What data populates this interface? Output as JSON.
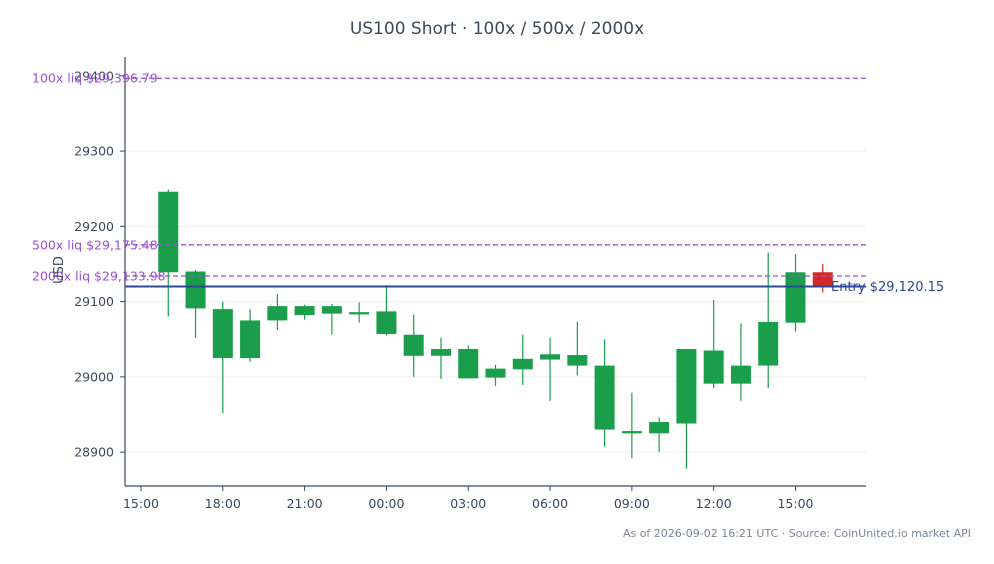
{
  "chart_data": {
    "type": "candlestick",
    "title": "US100 Short · 100x / 500x / 2000x",
    "ylabel": "USD",
    "xlabel": "",
    "ylim": [
      28855,
      29425
    ],
    "yticks": [
      28900,
      29000,
      29100,
      29200,
      29300,
      29400
    ],
    "xticks": [
      "15:00",
      "18:00",
      "21:00",
      "00:00",
      "03:00",
      "06:00",
      "09:00",
      "12:00",
      "15:00"
    ],
    "x_hours": [
      "15:00",
      "16:00",
      "17:00",
      "18:00",
      "19:00",
      "20:00",
      "21:00",
      "22:00",
      "23:00",
      "00:00",
      "01:00",
      "02:00",
      "03:00",
      "04:00",
      "05:00",
      "06:00",
      "07:00",
      "08:00",
      "09:00",
      "10:00",
      "11:00",
      "12:00",
      "13:00",
      "14:00",
      "15:00",
      "16:00"
    ],
    "candles": [
      {
        "t": "16:00",
        "open": 29139,
        "high": 29249,
        "low": 29080,
        "close": 29246
      },
      {
        "t": "17:00",
        "open": 29091,
        "high": 29142,
        "low": 29052,
        "close": 29140
      },
      {
        "t": "18:00",
        "open": 29025,
        "high": 29100,
        "low": 28952,
        "close": 29090
      },
      {
        "t": "19:00",
        "open": 29025,
        "high": 29090,
        "low": 29020,
        "close": 29075
      },
      {
        "t": "20:00",
        "open": 29075,
        "high": 29110,
        "low": 29062,
        "close": 29094
      },
      {
        "t": "21:00",
        "open": 29082,
        "high": 29096,
        "low": 29076,
        "close": 29094
      },
      {
        "t": "22:00",
        "open": 29084,
        "high": 29097,
        "low": 29056,
        "close": 29094
      },
      {
        "t": "23:00",
        "open": 29083,
        "high": 29099,
        "low": 29072,
        "close": 29086
      },
      {
        "t": "00:00",
        "open": 29057,
        "high": 29122,
        "low": 29055,
        "close": 29087
      },
      {
        "t": "01:00",
        "open": 29028,
        "high": 29083,
        "low": 29000,
        "close": 29056
      },
      {
        "t": "02:00",
        "open": 29028,
        "high": 29052,
        "low": 28997,
        "close": 29037
      },
      {
        "t": "03:00",
        "open": 28998,
        "high": 29042,
        "low": 28998,
        "close": 29037
      },
      {
        "t": "04:00",
        "open": 28999,
        "high": 29016,
        "low": 28988,
        "close": 29011
      },
      {
        "t": "05:00",
        "open": 29010,
        "high": 29056,
        "low": 28989,
        "close": 29024
      },
      {
        "t": "06:00",
        "open": 29023,
        "high": 29052,
        "low": 28968,
        "close": 29030
      },
      {
        "t": "07:00",
        "open": 29015,
        "high": 29073,
        "low": 29002,
        "close": 29029
      },
      {
        "t": "08:00",
        "open": 28930,
        "high": 29050,
        "low": 28907,
        "close": 29015
      },
      {
        "t": "09:00",
        "open": 28925,
        "high": 28979,
        "low": 28892,
        "close": 28928
      },
      {
        "t": "10:00",
        "open": 28925,
        "high": 28946,
        "low": 28900,
        "close": 28940
      },
      {
        "t": "11:00",
        "open": 28938,
        "high": 29037,
        "low": 28878,
        "close": 29037
      },
      {
        "t": "12:00",
        "open": 28991,
        "high": 29102,
        "low": 28985,
        "close": 29035
      },
      {
        "t": "13:00",
        "open": 28991,
        "high": 29071,
        "low": 28968,
        "close": 29015
      },
      {
        "t": "14:00",
        "open": 29015,
        "high": 29165,
        "low": 28985,
        "close": 29073
      },
      {
        "t": "15:00",
        "open": 29072,
        "high": 29163,
        "low": 29060,
        "close": 29139
      },
      {
        "t": "16:00",
        "open": 29139,
        "high": 29150,
        "low": 29112,
        "close": 29120
      }
    ],
    "reference_lines": [
      {
        "label": "100x liq $29,396.79",
        "value": 29396.79,
        "style": "dashed",
        "color": "#9b4fd6"
      },
      {
        "label": "500x liq $29,175.48",
        "value": 29175.48,
        "style": "dashed",
        "color": "#9b4fd6"
      },
      {
        "label": "2000x liq $29,133.98",
        "value": 29133.98,
        "style": "dashed",
        "color": "#9b4fd6"
      },
      {
        "label": "Entry $29,120.15",
        "value": 29120.15,
        "style": "solid",
        "color": "#2b4796"
      }
    ],
    "colors": {
      "up": "#1a9e4b",
      "down": "#d62728",
      "axis": "#3a4a5c",
      "grid": "#ececec"
    },
    "grid": true
  },
  "footer": "As of 2026-09-02 16:21 UTC · Source: CoinUnited.io market API"
}
